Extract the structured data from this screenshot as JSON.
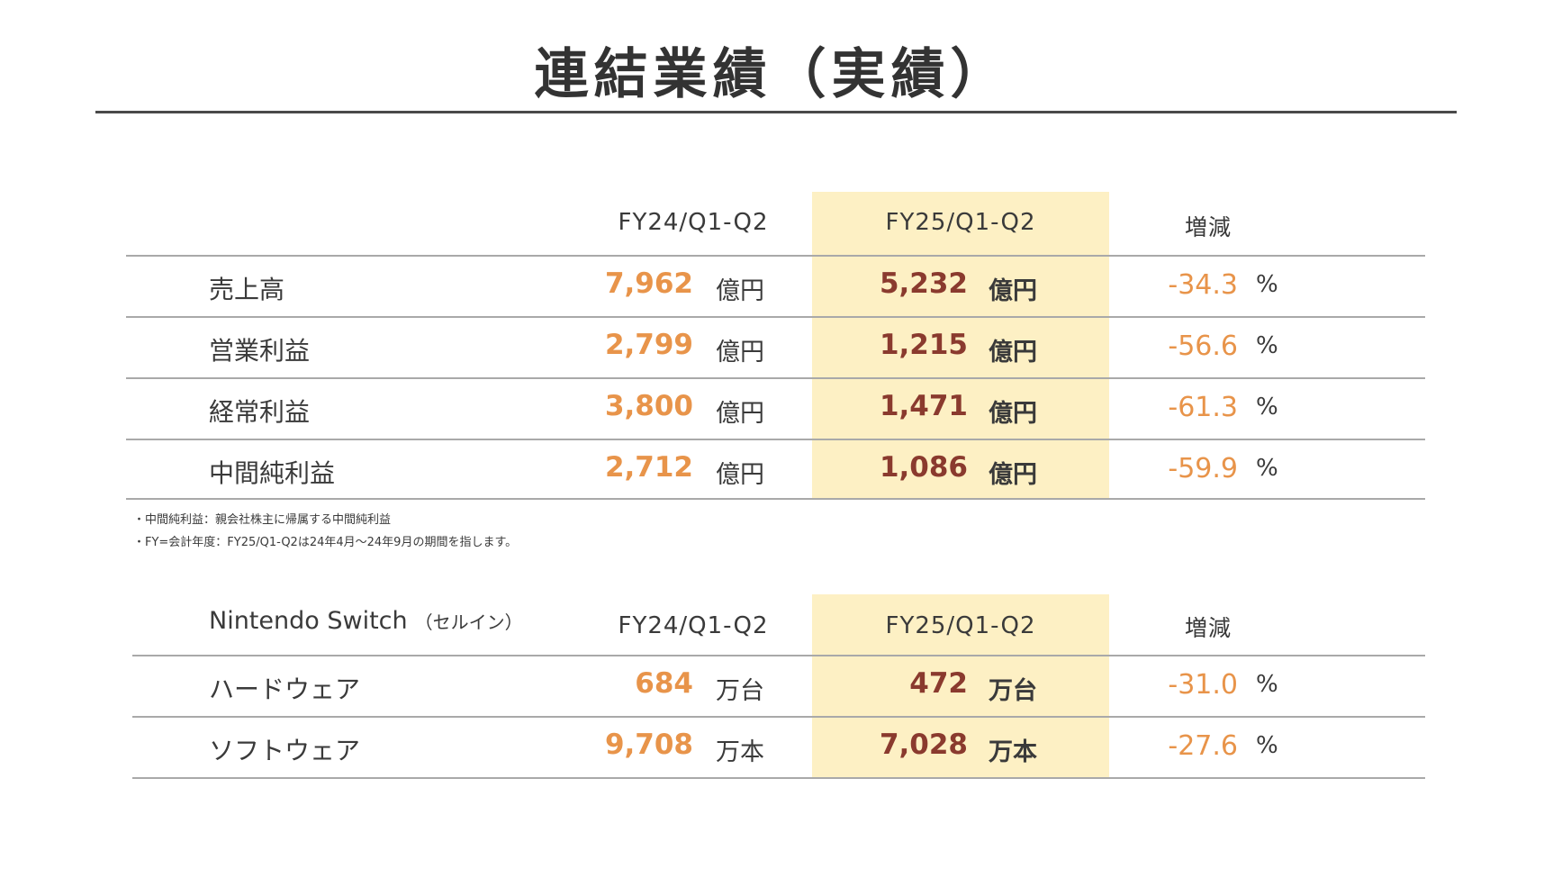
{
  "title": "連結業績（実績）",
  "financials": {
    "headers": [
      "FY24/Q1-Q2",
      "FY25/Q1-Q2",
      "増減"
    ],
    "rows": [
      {
        "label": "売上高",
        "fy24": "7,962",
        "fy24_unit": "億円",
        "fy25": "5,232",
        "fy25_unit": "億円",
        "change": "-34.3",
        "change_unit": "%"
      },
      {
        "label": "営業利益",
        "fy24": "2,799",
        "fy24_unit": "億円",
        "fy25": "1,215",
        "fy25_unit": "億円",
        "change": "-56.6",
        "change_unit": "%"
      },
      {
        "label": "経常利益",
        "fy24": "3,800",
        "fy24_unit": "億円",
        "fy25": "1,471",
        "fy25_unit": "億円",
        "change": "-61.3",
        "change_unit": "%"
      },
      {
        "label": "中間純利益",
        "fy24": "2,712",
        "fy24_unit": "億円",
        "fy25": "1,086",
        "fy25_unit": "億円",
        "change": "-59.9",
        "change_unit": "%"
      }
    ]
  },
  "notes": [
    "・中間純利益：親会社株主に帰属する中間純利益",
    "・FY=会計年度：FY25/Q1-Q2は24年4月～24年9月の期間を指します。"
  ],
  "switch": {
    "section_name": "Nintendo Switch",
    "section_sub": "（セルイン）",
    "headers": [
      "FY24/Q1-Q2",
      "FY25/Q1-Q2",
      "増減"
    ],
    "rows": [
      {
        "label": "ハードウェア",
        "fy24": "684",
        "fy24_unit": "万台",
        "fy25": "472",
        "fy25_unit": "万台",
        "change": "-31.0",
        "change_unit": "%"
      },
      {
        "label": "ソフトウェア",
        "fy24": "9,708",
        "fy24_unit": "万本",
        "fy25": "7,028",
        "fy25_unit": "万本",
        "change": "-27.6",
        "change_unit": "%"
      }
    ]
  },
  "colors": {
    "highlight": "#fdf0c4",
    "fy24_value": "#e8944a",
    "fy25_value": "#8a3a2e",
    "change_value": "#e8944a"
  }
}
